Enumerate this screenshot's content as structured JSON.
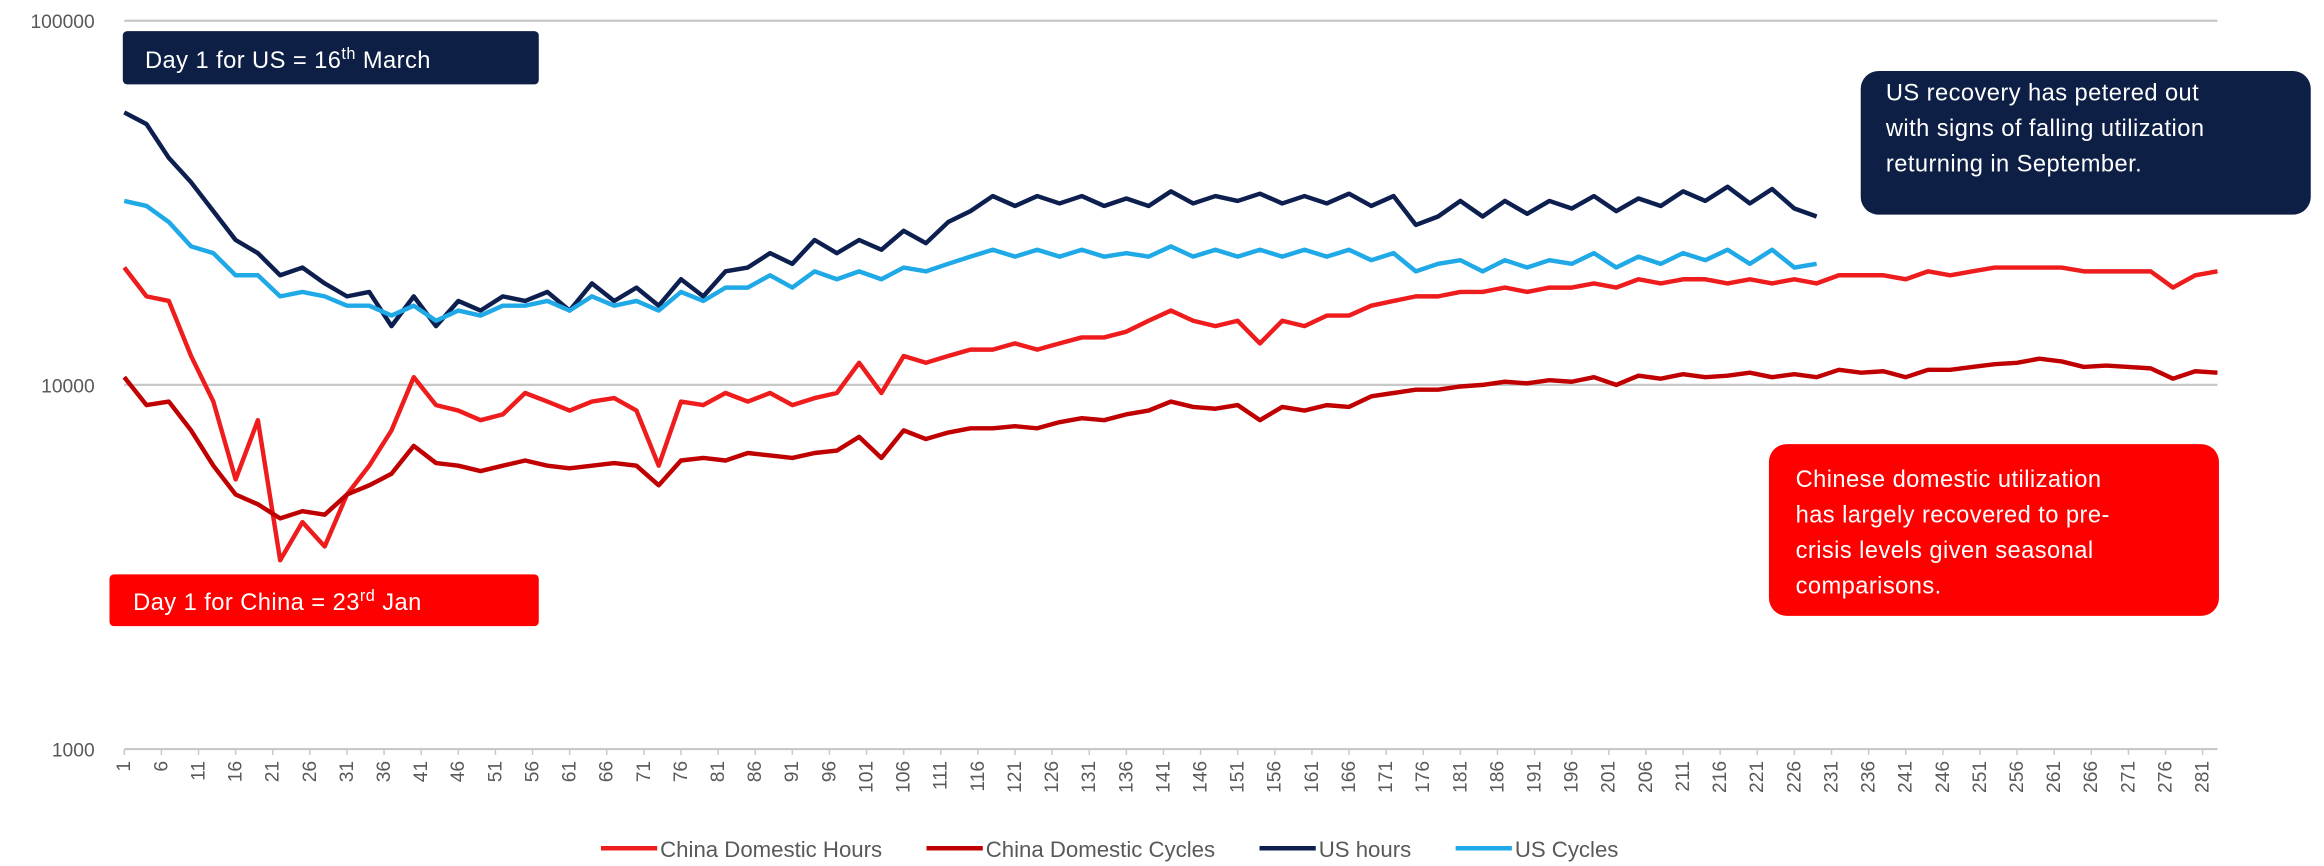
{
  "chart_data": {
    "type": "line",
    "ylog": true,
    "grid": true,
    "legend": "bottom",
    "annotations": [
      {
        "text": "Day 1 for US = 16",
        "sup": "th",
        "after": " March",
        "color": "#0d1f45"
      },
      {
        "lines": [
          "US recovery has petered out",
          "with signs of falling utilization",
          "returning in September."
        ],
        "color": "#0d1f45"
      },
      {
        "lines": [
          "Chinese domestic utilization",
          "has largely recovered to pre-",
          "crisis levels given seasonal",
          "comparisons."
        ],
        "color": "#ff0000"
      },
      {
        "text": "Day 1 for China = 23",
        "sup": "rd",
        "after": " Jan",
        "color": "#ff0000"
      }
    ],
    "x": [
      1,
      4,
      7,
      10,
      13,
      16,
      19,
      22,
      25,
      28,
      31,
      34,
      37,
      40,
      43,
      46,
      49,
      52,
      55,
      58,
      61,
      64,
      67,
      70,
      73,
      76,
      79,
      82,
      85,
      88,
      91,
      94,
      97,
      100,
      103,
      106,
      109,
      112,
      115,
      118,
      121,
      124,
      127,
      130,
      133,
      136,
      139,
      142,
      145,
      148,
      151,
      154,
      157,
      160,
      163,
      166,
      169,
      172,
      175,
      178,
      181,
      184,
      187,
      190,
      193,
      196,
      199,
      202,
      205,
      208,
      211,
      214,
      217,
      220,
      223,
      226,
      229,
      232,
      235,
      238,
      241,
      244,
      247,
      250,
      253,
      256,
      259,
      262,
      265,
      268,
      271,
      274,
      277,
      280,
      283
    ],
    "xlim": [
      1,
      283
    ],
    "xticks": [
      1,
      6,
      11,
      16,
      21,
      26,
      31,
      36,
      41,
      46,
      51,
      56,
      61,
      66,
      71,
      76,
      81,
      86,
      91,
      96,
      101,
      106,
      111,
      116,
      121,
      126,
      131,
      136,
      141,
      146,
      151,
      156,
      161,
      166,
      171,
      176,
      181,
      186,
      191,
      196,
      201,
      206,
      211,
      216,
      221,
      226,
      231,
      236,
      241,
      246,
      251,
      256,
      261,
      266,
      271,
      276,
      281
    ],
    "ylim": [
      1000,
      100000
    ],
    "yticks": [
      1000,
      10000,
      100000
    ],
    "series": [
      {
        "name": "China Domestic Hours",
        "color": "#ee1c1c",
        "values": [
          21000,
          17500,
          17000,
          12000,
          9000,
          5500,
          8000,
          3300,
          4200,
          3600,
          5000,
          6000,
          7500,
          10500,
          8800,
          8500,
          8000,
          8300,
          9500,
          9000,
          8500,
          9000,
          9200,
          8500,
          6000,
          9000,
          8800,
          9500,
          9000,
          9500,
          8800,
          9200,
          9500,
          11500,
          9500,
          12000,
          11500,
          12000,
          12500,
          12500,
          13000,
          12500,
          13000,
          13500,
          13500,
          14000,
          15000,
          16000,
          15000,
          14500,
          15000,
          13000,
          15000,
          14500,
          15500,
          15500,
          16500,
          17000,
          17500,
          17500,
          18000,
          18000,
          18500,
          18000,
          18500,
          18500,
          19000,
          18500,
          19500,
          19000,
          19500,
          19500,
          19000,
          19500,
          19000,
          19500,
          19000,
          20000,
          20000,
          20000,
          19500,
          20500,
          20000,
          20500,
          21000,
          21000,
          21000,
          21000,
          20500,
          20500,
          20500,
          20500,
          18500,
          20000,
          20500
        ]
      },
      {
        "name": "China Domestic Cycles",
        "color": "#c00000",
        "values": [
          10500,
          8800,
          9000,
          7500,
          6000,
          5000,
          4700,
          4300,
          4500,
          4400,
          5000,
          5300,
          5700,
          6800,
          6100,
          6000,
          5800,
          6000,
          6200,
          6000,
          5900,
          6000,
          6100,
          6000,
          5300,
          6200,
          6300,
          6200,
          6500,
          6400,
          6300,
          6500,
          6600,
          7200,
          6300,
          7500,
          7100,
          7400,
          7600,
          7600,
          7700,
          7600,
          7900,
          8100,
          8000,
          8300,
          8500,
          9000,
          8700,
          8600,
          8800,
          8000,
          8700,
          8500,
          8800,
          8700,
          9300,
          9500,
          9700,
          9700,
          9900,
          10000,
          10200,
          10100,
          10300,
          10200,
          10500,
          10000,
          10600,
          10400,
          10700,
          10500,
          10600,
          10800,
          10500,
          10700,
          10500,
          11000,
          10800,
          10900,
          10500,
          11000,
          11000,
          11200,
          11400,
          11500,
          11800,
          11600,
          11200,
          11300,
          11200,
          11100,
          10400,
          10900,
          10800
        ]
      },
      {
        "name": "US hours",
        "color": "#0d1f4f",
        "values": [
          56000,
          52000,
          42000,
          36000,
          30000,
          25000,
          23000,
          20000,
          21000,
          19000,
          17500,
          18000,
          14500,
          17500,
          14500,
          17000,
          16000,
          17500,
          17000,
          18000,
          16000,
          19000,
          17000,
          18500,
          16500,
          19500,
          17500,
          20500,
          21000,
          23000,
          21500,
          25000,
          23000,
          25000,
          23500,
          26500,
          24500,
          28000,
          30000,
          33000,
          31000,
          33000,
          31500,
          33000,
          31000,
          32500,
          31000,
          34000,
          31500,
          33000,
          32000,
          33500,
          31500,
          33000,
          31500,
          33500,
          31000,
          33000,
          27500,
          29000,
          32000,
          29000,
          32000,
          29500,
          32000,
          30500,
          33000,
          30000,
          32500,
          31000,
          34000,
          32000,
          35000,
          31500,
          34500,
          30500,
          29000,
          null,
          null,
          null,
          null,
          null,
          null,
          null,
          null,
          null,
          null,
          null,
          null,
          null,
          null,
          null,
          null,
          null,
          null
        ]
      },
      {
        "name": "US Cycles",
        "color": "#1fa9e6",
        "values": [
          32000,
          31000,
          28000,
          24000,
          23000,
          20000,
          20000,
          17500,
          18000,
          17500,
          16500,
          16500,
          15500,
          16500,
          15000,
          16000,
          15500,
          16500,
          16500,
          17000,
          16000,
          17500,
          16500,
          17000,
          16000,
          18000,
          17000,
          18500,
          18500,
          20000,
          18500,
          20500,
          19500,
          20500,
          19500,
          21000,
          20500,
          21500,
          22500,
          23500,
          22500,
          23500,
          22500,
          23500,
          22500,
          23000,
          22500,
          24000,
          22500,
          23500,
          22500,
          23500,
          22500,
          23500,
          22500,
          23500,
          22000,
          23000,
          20500,
          21500,
          22000,
          20500,
          22000,
          21000,
          22000,
          21500,
          23000,
          21000,
          22500,
          21500,
          23000,
          22000,
          23500,
          21500,
          23500,
          21000,
          21500,
          null,
          null,
          null,
          null,
          null,
          null,
          null,
          null,
          null,
          null,
          null,
          null,
          null,
          null,
          null,
          null,
          null,
          null
        ]
      }
    ]
  }
}
